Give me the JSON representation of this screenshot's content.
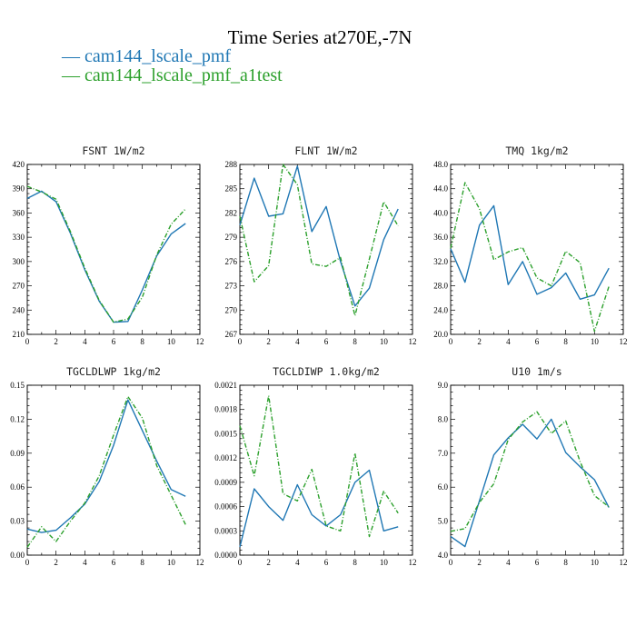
{
  "figure": {
    "title": "Time Series at270E,-7N",
    "legend": [
      {
        "label": "— cam144_lscale_pmf",
        "color": "#1f77b4"
      },
      {
        "label": "— cam144_lscale_pmf_a1test",
        "color": "#2ca02c"
      }
    ]
  },
  "chart_data": [
    {
      "type": "line",
      "title": "FSNT   1W/m2",
      "x": [
        0,
        1,
        2,
        3,
        4,
        5,
        6,
        7,
        8,
        9,
        10,
        11
      ],
      "xlim": [
        0,
        12
      ],
      "xticks": [
        0,
        2,
        4,
        6,
        8,
        10,
        12
      ],
      "ylim": [
        210,
        420
      ],
      "yticks": [
        210,
        240,
        270,
        300,
        330,
        360,
        390,
        420
      ],
      "yticklabels": [
        "210",
        "240",
        "270",
        "300",
        "330",
        "360",
        "390",
        "420"
      ],
      "series": [
        {
          "name": "cam144_lscale_pmf",
          "color": "#1f77b4",
          "dashed": false,
          "values": [
            378,
            387,
            374,
            335,
            290,
            251,
            225,
            226,
            265,
            307,
            334,
            347
          ]
        },
        {
          "name": "cam144_lscale_pmf_a1test",
          "color": "#2ca02c",
          "dashed": true,
          "values": [
            393,
            386,
            377,
            337,
            292,
            252,
            225,
            229,
            256,
            308,
            346,
            365
          ]
        }
      ]
    },
    {
      "type": "line",
      "title": "FLNT   1W/m2",
      "x": [
        0,
        1,
        2,
        3,
        4,
        5,
        6,
        7,
        8,
        9,
        10,
        11
      ],
      "xlim": [
        0,
        12
      ],
      "xticks": [
        0,
        2,
        4,
        6,
        8,
        10,
        12
      ],
      "ylim": [
        267,
        288
      ],
      "yticks": [
        267,
        270,
        273,
        276,
        279,
        282,
        285,
        288
      ],
      "yticklabels": [
        "267",
        "270",
        "273",
        "276",
        "279",
        "282",
        "285",
        "288"
      ],
      "series": [
        {
          "name": "cam144_lscale_pmf",
          "color": "#1f77b4",
          "dashed": false,
          "values": [
            280.5,
            286.3,
            281.6,
            281.9,
            287.8,
            279.7,
            282.8,
            276.0,
            270.5,
            272.7,
            278.7,
            282.5
          ]
        },
        {
          "name": "cam144_lscale_pmf_a1test",
          "color": "#2ca02c",
          "dashed": true,
          "values": [
            281.6,
            273.5,
            275.5,
            288.0,
            285.5,
            275.7,
            275.4,
            276.5,
            269.3,
            276.3,
            283.4,
            280.4
          ]
        }
      ]
    },
    {
      "type": "line",
      "title": "TMQ   1kg/m2",
      "x": [
        0,
        1,
        2,
        3,
        4,
        5,
        6,
        7,
        8,
        9,
        10,
        11
      ],
      "xlim": [
        0,
        12
      ],
      "xticks": [
        0,
        2,
        4,
        6,
        8,
        10,
        12
      ],
      "ylim": [
        20,
        48
      ],
      "yticks": [
        20,
        24,
        28,
        32,
        36,
        40,
        44,
        48
      ],
      "yticklabels": [
        "20.0",
        "24.0",
        "28.0",
        "32.0",
        "36.0",
        "40.0",
        "44.0",
        "48.0"
      ],
      "series": [
        {
          "name": "cam144_lscale_pmf",
          "color": "#1f77b4",
          "dashed": false,
          "values": [
            34.1,
            28.6,
            38.0,
            41.2,
            28.2,
            32.0,
            26.6,
            27.7,
            30.1,
            25.8,
            26.5,
            30.9
          ]
        },
        {
          "name": "cam144_lscale_pmf_a1test",
          "color": "#2ca02c",
          "dashed": true,
          "values": [
            34.2,
            45.0,
            40.7,
            32.3,
            33.6,
            34.3,
            29.3,
            28.0,
            33.7,
            31.8,
            20.5,
            27.9
          ]
        }
      ]
    },
    {
      "type": "line",
      "title": "TGCLDLWP   1kg/m2",
      "x": [
        0,
        1,
        2,
        3,
        4,
        5,
        6,
        7,
        8,
        9,
        10,
        11
      ],
      "xlim": [
        0,
        12
      ],
      "xticks": [
        0,
        2,
        4,
        6,
        8,
        10,
        12
      ],
      "ylim": [
        0,
        0.15
      ],
      "yticks": [
        0,
        0.03,
        0.06,
        0.09,
        0.12,
        0.15
      ],
      "yticklabels": [
        "0.00",
        "0.03",
        "0.06",
        "0.09",
        "0.12",
        "0.15"
      ],
      "series": [
        {
          "name": "cam144_lscale_pmf",
          "color": "#1f77b4",
          "dashed": false,
          "values": [
            0.023,
            0.02,
            0.022,
            0.033,
            0.045,
            0.065,
            0.097,
            0.137,
            0.11,
            0.083,
            0.058,
            0.052
          ]
        },
        {
          "name": "cam144_lscale_pmf_a1test",
          "color": "#2ca02c",
          "dashed": true,
          "values": [
            0.007,
            0.025,
            0.012,
            0.03,
            0.046,
            0.07,
            0.106,
            0.14,
            0.121,
            0.079,
            0.053,
            0.027
          ]
        }
      ]
    },
    {
      "type": "line",
      "title": "TGCLDIWP   1.0kg/m2",
      "x": [
        0,
        1,
        2,
        3,
        4,
        5,
        6,
        7,
        8,
        9,
        10,
        11
      ],
      "xlim": [
        0,
        12
      ],
      "xticks": [
        0,
        2,
        4,
        6,
        8,
        10,
        12
      ],
      "ylim": [
        0,
        0.0021
      ],
      "yticks": [
        0,
        0.0003,
        0.0006,
        0.0009,
        0.0012,
        0.0015,
        0.0018,
        0.0021
      ],
      "yticklabels": [
        "0.0000",
        "0.0003",
        "0.0006",
        "0.0009",
        "0.0012",
        "0.0015",
        "0.0018",
        "0.0021"
      ],
      "series": [
        {
          "name": "cam144_lscale_pmf",
          "color": "#1f77b4",
          "dashed": false,
          "values": [
            0.0001,
            0.00082,
            0.0006,
            0.00043,
            0.00087,
            0.0005,
            0.00036,
            0.0005,
            0.0009,
            0.00105,
            0.0003,
            0.00035
          ]
        },
        {
          "name": "cam144_lscale_pmf_a1test",
          "color": "#2ca02c",
          "dashed": true,
          "values": [
            0.0016,
            0.00098,
            0.00197,
            0.00076,
            0.00067,
            0.00106,
            0.00036,
            0.0003,
            0.00126,
            0.00023,
            0.00079,
            0.00052
          ]
        }
      ]
    },
    {
      "type": "line",
      "title": "U10   1m/s",
      "x": [
        0,
        1,
        2,
        3,
        4,
        5,
        6,
        7,
        8,
        9,
        10,
        11
      ],
      "xlim": [
        0,
        12
      ],
      "xticks": [
        0,
        2,
        4,
        6,
        8,
        10,
        12
      ],
      "ylim": [
        4,
        9
      ],
      "yticks": [
        4,
        5,
        6,
        7,
        8,
        9
      ],
      "yticklabels": [
        "4.0",
        "5.0",
        "6.0",
        "7.0",
        "8.0",
        "9.0"
      ],
      "series": [
        {
          "name": "cam144_lscale_pmf",
          "color": "#1f77b4",
          "dashed": false,
          "values": [
            4.55,
            4.25,
            5.6,
            6.95,
            7.45,
            7.85,
            7.42,
            8.0,
            7.02,
            6.6,
            6.22,
            5.4
          ]
        },
        {
          "name": "cam144_lscale_pmf_a1test",
          "color": "#2ca02c",
          "dashed": true,
          "values": [
            4.7,
            4.78,
            5.55,
            6.1,
            7.4,
            7.92,
            8.22,
            7.58,
            7.95,
            6.75,
            5.75,
            5.42
          ]
        }
      ]
    }
  ]
}
